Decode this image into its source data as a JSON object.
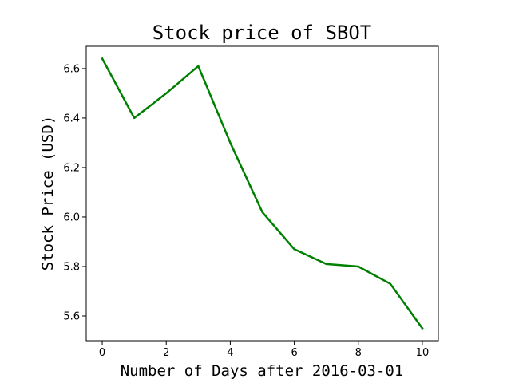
{
  "chart_data": {
    "type": "line",
    "title": "Stock price of SBOT",
    "xlabel": "Number of Days after 2016-03-01",
    "ylabel": "Stock Price (USD)",
    "x": [
      0,
      1,
      2,
      3,
      4,
      5,
      6,
      7,
      8,
      9,
      10
    ],
    "series": [
      {
        "values": [
          6.64,
          6.4,
          6.5,
          6.61,
          6.3,
          6.02,
          5.87,
          5.81,
          5.8,
          5.73,
          5.55
        ],
        "color": "#008000"
      }
    ],
    "xlim": [
      -0.5,
      10.5
    ],
    "ylim": [
      5.5,
      6.69
    ],
    "xticks": [
      0,
      2,
      4,
      6,
      8,
      10
    ],
    "xtick_labels": [
      "0",
      "2",
      "4",
      "6",
      "8",
      "10"
    ],
    "yticks": [
      5.6,
      5.8,
      6.0,
      6.2,
      6.4,
      6.6
    ],
    "ytick_labels": [
      "5.6",
      "5.8",
      "6.0",
      "6.2",
      "6.4",
      "6.6"
    ],
    "grid": false,
    "legend": false
  }
}
